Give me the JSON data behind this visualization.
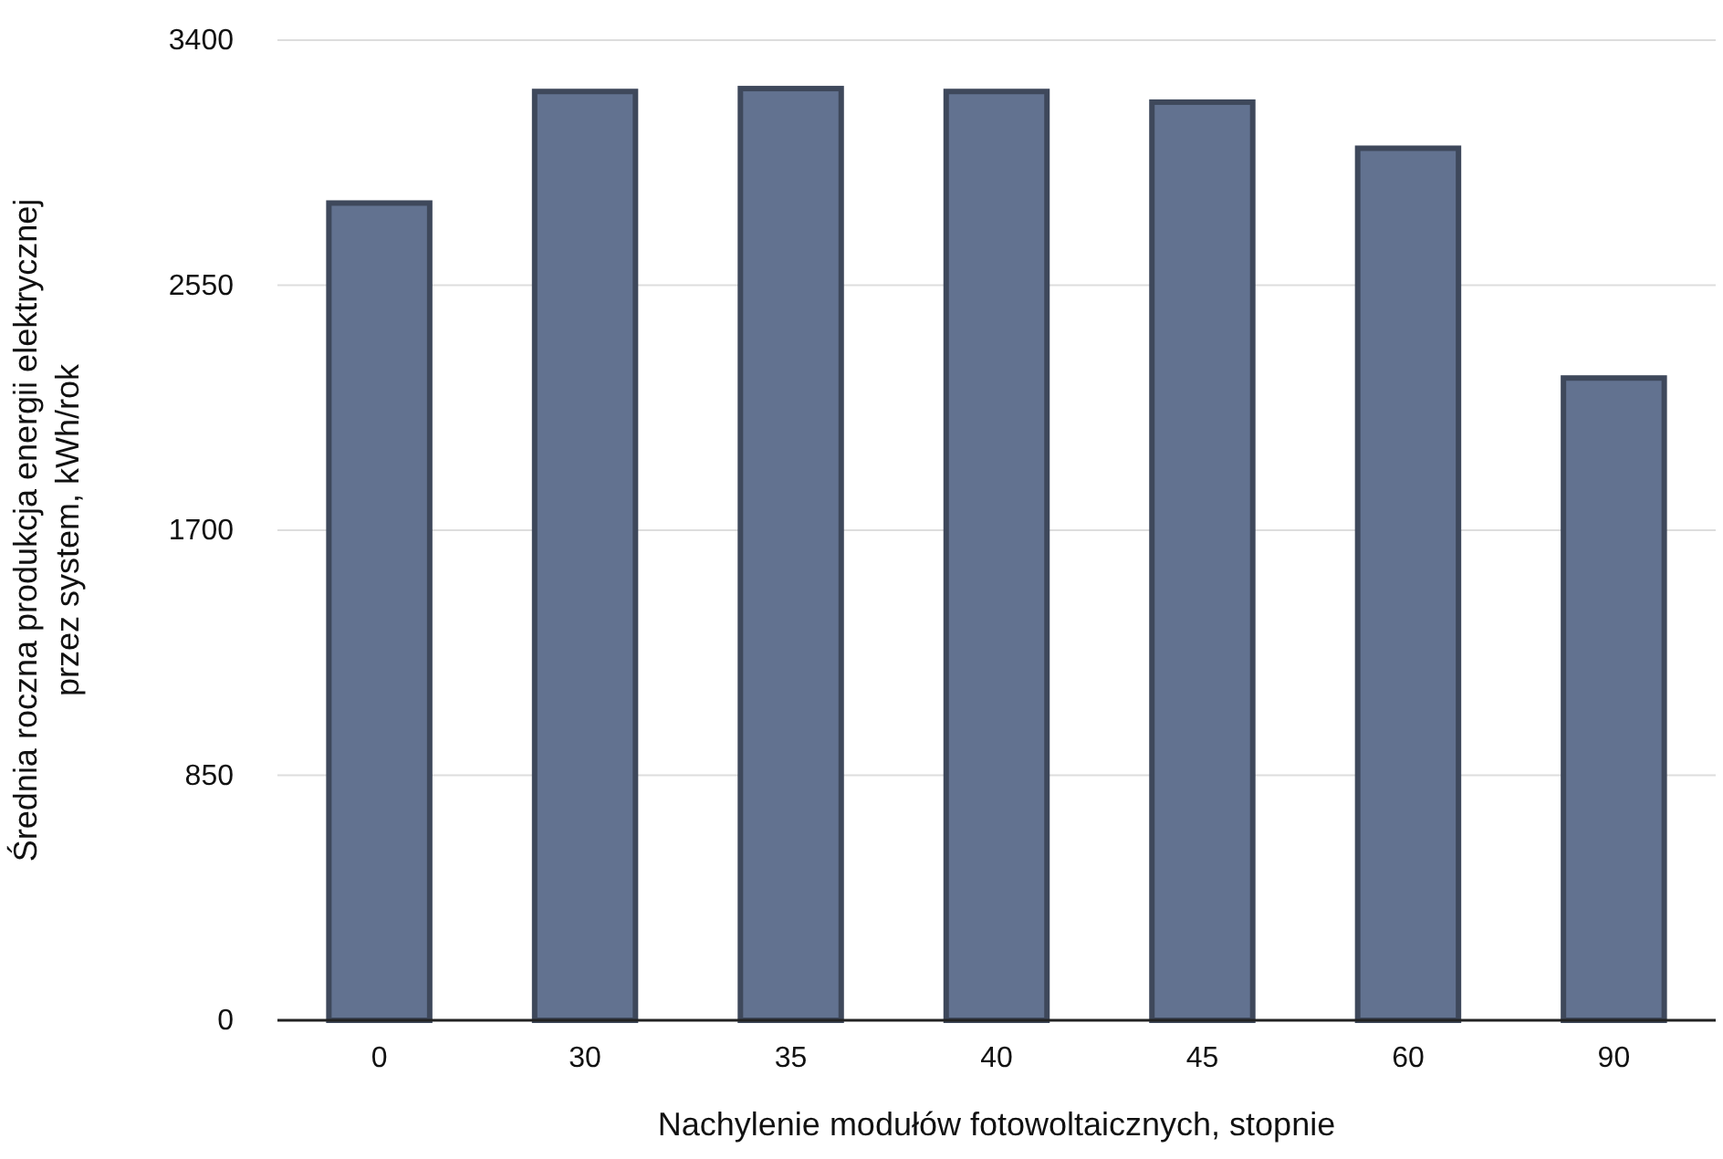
{
  "chart_data": {
    "type": "bar",
    "xlabel": "Nachylenie modułów fotowoltaicznych, stopnie",
    "ylabel": "Średnia roczna produkcja energii elektrycznej przez system, kWh/rok",
    "categories": [
      "0",
      "30",
      "35",
      "40",
      "45",
      "60",
      "90"
    ],
    "series": [
      {
        "color": "#627290",
        "values": [
          2835,
          3222,
          3232,
          3222,
          3185,
          3025,
          2228
        ]
      }
    ],
    "ylim": [
      0,
      3400
    ],
    "yticks": [
      0,
      850,
      1700,
      2550,
      3400
    ],
    "grid": "y"
  }
}
